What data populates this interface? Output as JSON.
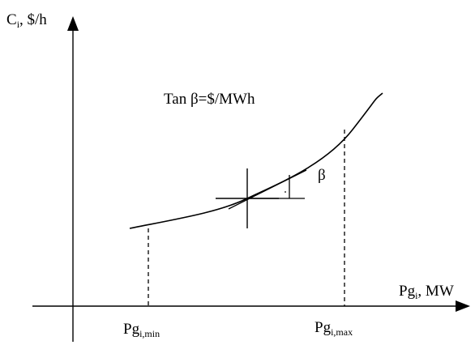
{
  "labels": {
    "y_axis": {
      "base": "C",
      "sub": "i",
      "rest": ", $/h"
    },
    "x_axis": {
      "base": "Pg",
      "sub": "i",
      "rest": ", MW"
    },
    "pg_min": {
      "base": "Pg",
      "sub": "i,min"
    },
    "pg_max": {
      "base": "Pg",
      "sub": "i,max"
    },
    "tangent_formula": "Tan β=$/MWh",
    "angle_symbol": "β"
  }
}
